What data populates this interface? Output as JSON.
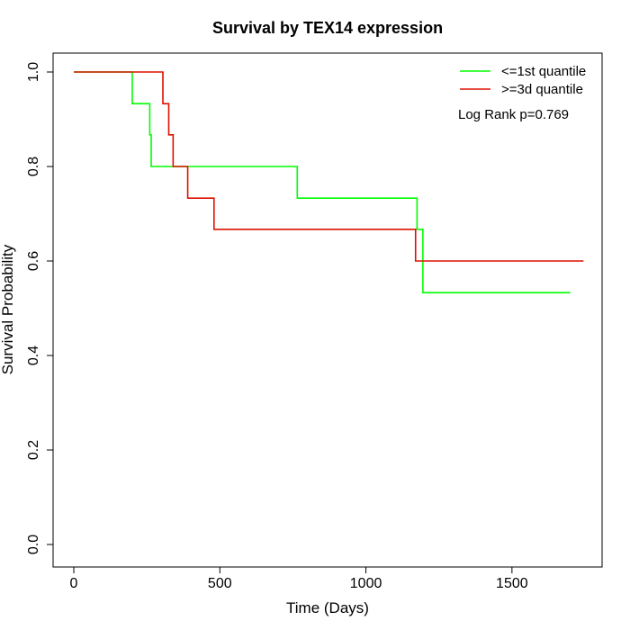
{
  "chart_data": {
    "type": "line",
    "title": "Survival by TEX14 expression",
    "xlabel": "Time (Days)",
    "ylabel": "Survival Probability",
    "xlim": [
      0,
      1750
    ],
    "ylim": [
      0,
      1.0
    ],
    "x_ticks": [
      0,
      500,
      1000,
      1500
    ],
    "y_ticks": [
      0.0,
      0.2,
      0.4,
      0.6,
      0.8,
      1.0
    ],
    "x_tick_labels": [
      "0",
      "500",
      "1000",
      "1500"
    ],
    "y_tick_labels": [
      "0.0",
      "0.2",
      "0.4",
      "0.6",
      "0.8",
      "1.0"
    ],
    "grid": false,
    "legend_position": "top-right",
    "annotation": "Log Rank p=0.769",
    "series": [
      {
        "name": "<=1st quantile",
        "color": "#00ff00",
        "step": true,
        "x": [
          0,
          200,
          260,
          265,
          765,
          1175,
          1195,
          1700
        ],
        "y": [
          1.0,
          0.933,
          0.867,
          0.8,
          0.733,
          0.667,
          0.533,
          0.533
        ]
      },
      {
        "name": ">=3d quantile",
        "color": "#dd1100",
        "step": true,
        "x": [
          0,
          305,
          325,
          340,
          390,
          480,
          1170,
          1745
        ],
        "y": [
          1.0,
          0.933,
          0.867,
          0.8,
          0.733,
          0.667,
          0.6,
          0.6
        ]
      }
    ]
  }
}
